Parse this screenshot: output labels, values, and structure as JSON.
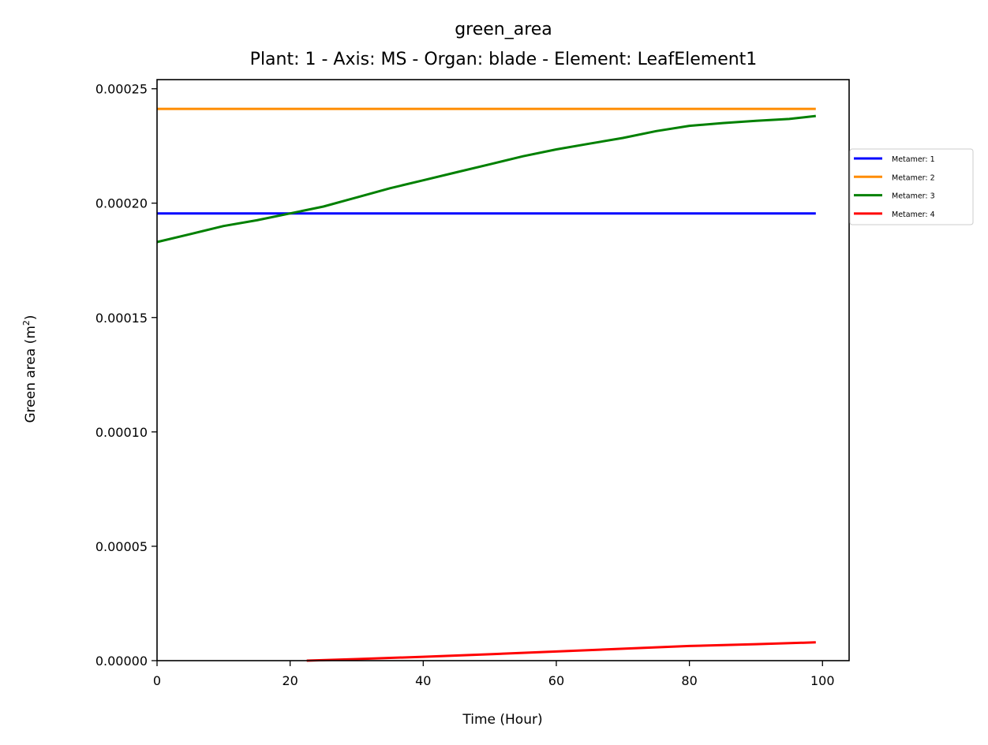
{
  "chart_data": {
    "type": "line",
    "title": "green_area",
    "subtitle": "Plant: 1 - Axis: MS - Organ: blade - Element: LeafElement1",
    "xlabel": "Time (Hour)",
    "ylabel": "Green area (m",
    "ylabel_superscript": "2",
    "ylabel_suffix": ")",
    "xlim": [
      0,
      104
    ],
    "ylim": [
      0,
      0.000254
    ],
    "xticks": [
      0,
      20,
      40,
      60,
      80,
      100
    ],
    "xtick_labels": [
      "0",
      "20",
      "40",
      "60",
      "80",
      "100"
    ],
    "yticks": [
      0,
      5e-05,
      0.0001,
      0.00015,
      0.0002,
      0.00025
    ],
    "ytick_labels": [
      "0.00000",
      "0.00005",
      "0.00010",
      "0.00015",
      "0.00020",
      "0.00025"
    ],
    "grid": false,
    "legend_position": "right, outside plot area",
    "series": [
      {
        "name": "Metamer: 1",
        "color": "#0000ff",
        "x": [
          0,
          99
        ],
        "y": [
          0.0001955,
          0.0001955
        ]
      },
      {
        "name": "Metamer: 2",
        "color": "#ff8c00",
        "x": [
          0,
          99
        ],
        "y": [
          0.0002412,
          0.0002412
        ]
      },
      {
        "name": "Metamer: 3",
        "color": "#008000",
        "x": [
          0,
          5,
          10,
          15,
          20,
          25,
          30,
          35,
          40,
          45,
          50,
          55,
          60,
          65,
          70,
          75,
          80,
          85,
          90,
          95,
          99
        ],
        "y": [
          0.000183,
          0.0001865,
          0.00019,
          0.0001925,
          0.0001955,
          0.0001985,
          0.0002025,
          0.0002065,
          0.00021,
          0.0002135,
          0.000217,
          0.0002205,
          0.0002235,
          0.000226,
          0.0002285,
          0.0002315,
          0.0002338,
          0.000235,
          0.000236,
          0.0002368,
          0.0002381
        ]
      },
      {
        "name": "Metamer: 4",
        "color": "#ff0000",
        "x": [
          22.5,
          30,
          40,
          50,
          60,
          70,
          80,
          90,
          99
        ],
        "y": [
          0,
          7e-07,
          1.7e-06,
          2.8e-06,
          4e-06,
          5.2e-06,
          6.4e-06,
          7.2e-06,
          8e-06
        ]
      }
    ]
  }
}
